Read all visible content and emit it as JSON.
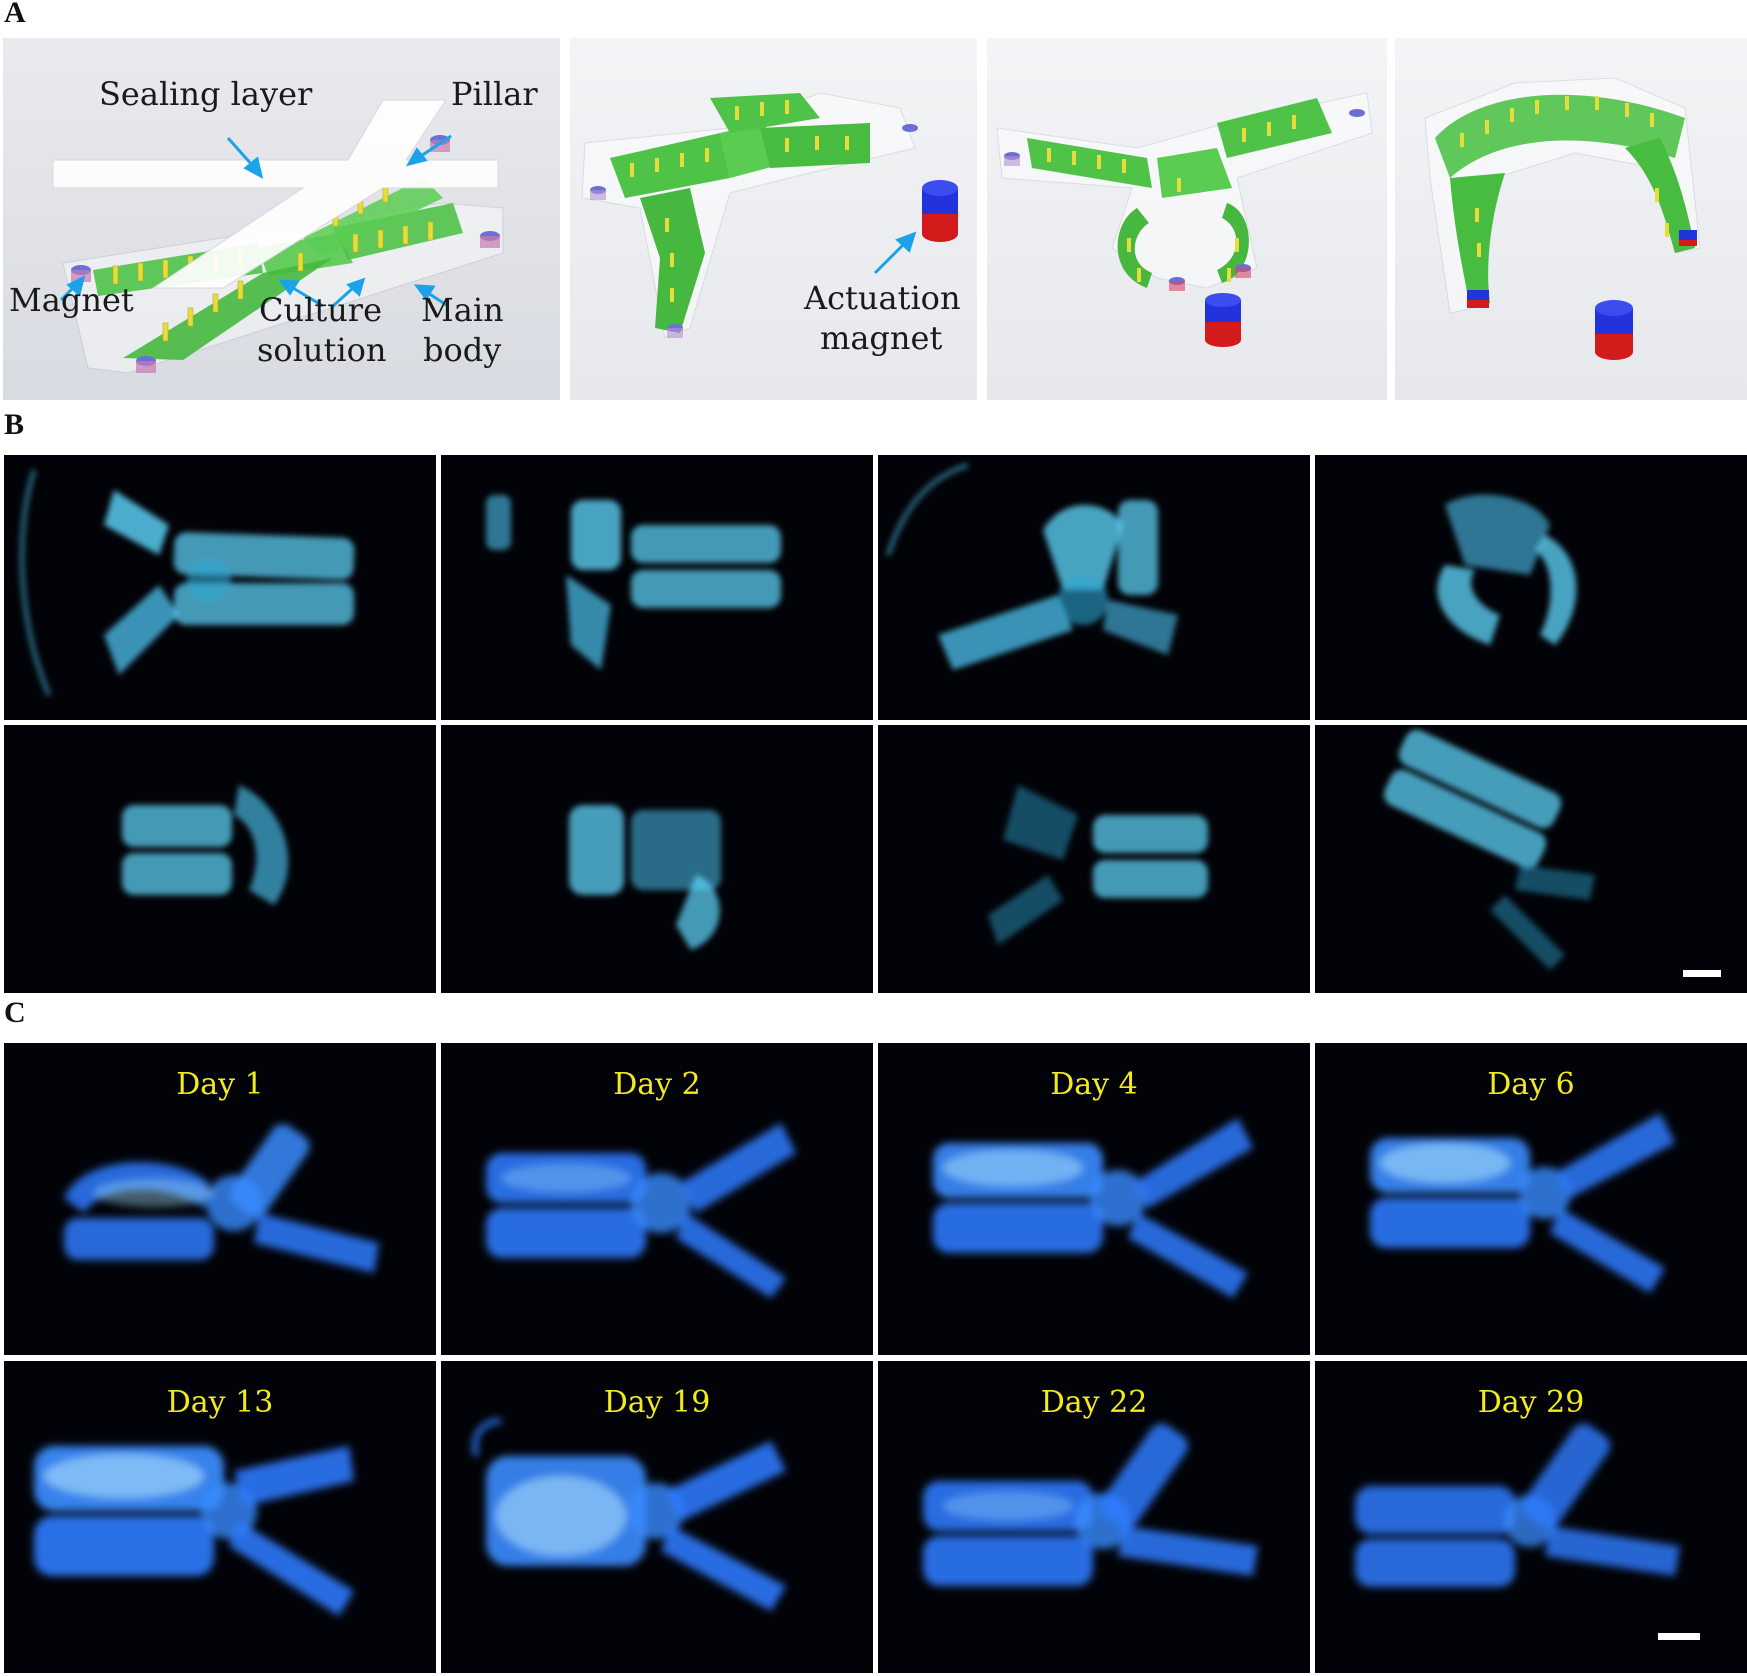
{
  "panels": {
    "a": {
      "letter": "A",
      "labels": {
        "sealing_layer": "Sealing layer",
        "pillar": "Pillar",
        "magnet": "Magnet",
        "culture_solution": [
          "Culture",
          "solution"
        ],
        "main_body": [
          "Main",
          "body"
        ],
        "actuation_magnet": [
          "Actuation",
          "magnet"
        ]
      }
    },
    "b": {
      "letter": "B"
    },
    "c": {
      "letter": "C",
      "days": [
        "Day 1",
        "Day 2",
        "Day 4",
        "Day 6",
        "Day 13",
        "Day 19",
        "Day 22",
        "Day 29"
      ]
    }
  },
  "colors": {
    "arrow": "#1aa3e8",
    "device_green": "#4fc248",
    "pillar_yellow": "#e8dc3a",
    "magnet_blue": "#2233dd",
    "magnet_red": "#d41b1b",
    "fluor_cyan": "#5fd8ff",
    "fluor_blue": "#2f7bff",
    "day_label": "#f2ea1c"
  }
}
